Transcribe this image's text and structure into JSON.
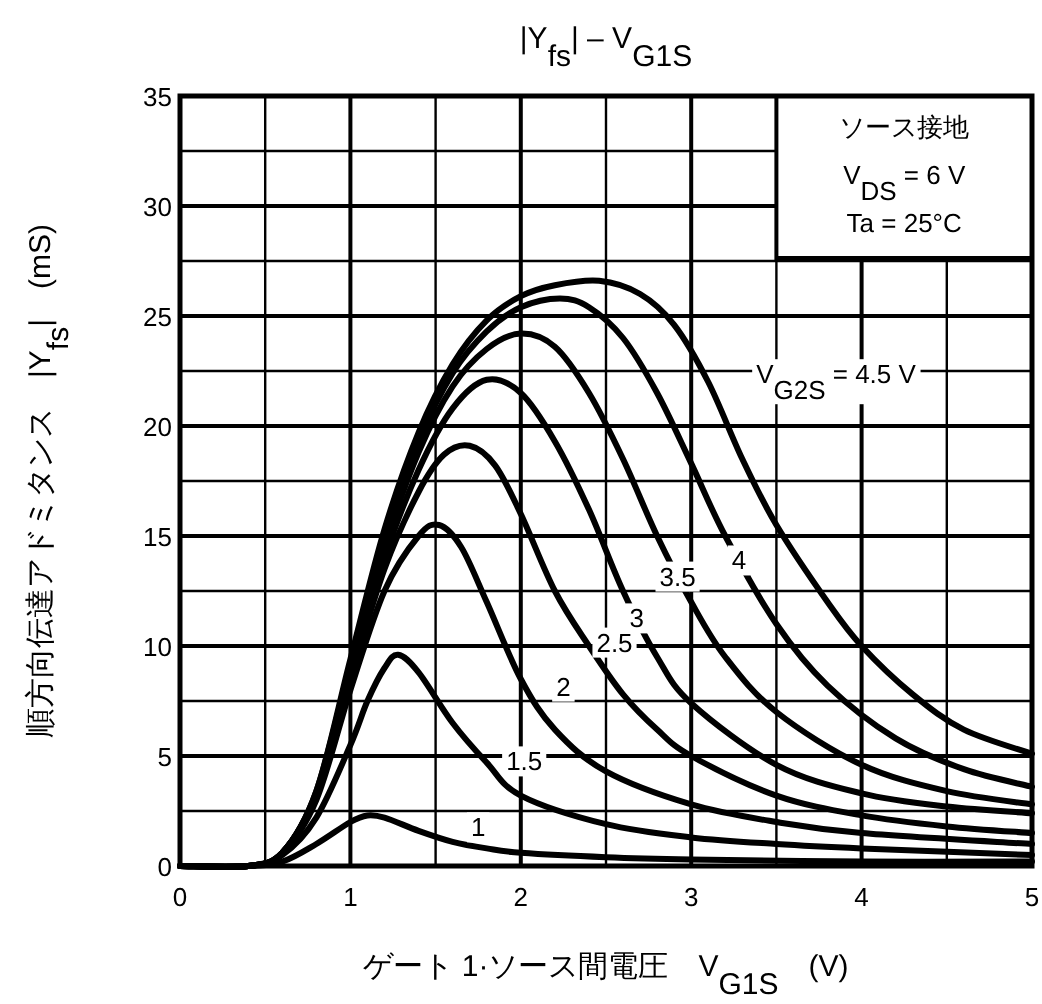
{
  "chart_data": {
    "type": "line",
    "title": "|Y$_{fs}$| – V$_{G1S}$",
    "xlabel": "ゲート 1·ソース間電圧　V$_{G1S}$　(V)",
    "ylabel": "順方向伝達アドミタンス　|Y$_{fs}$|　(mS)",
    "annotations": [
      "ソース接地",
      "V$_{DS}$ = 6 V",
      "Ta = 25°C"
    ],
    "xlim": [
      0,
      5
    ],
    "ylim": [
      0,
      35
    ],
    "xticks": [
      0,
      {
        "value": 0.5,
        "label": null
      },
      1,
      {
        "value": 1.5,
        "label": null
      },
      2,
      {
        "value": 2.5,
        "label": null
      },
      3,
      {
        "value": 3.5,
        "label": null
      },
      4,
      {
        "value": 4.5,
        "label": null
      },
      5
    ],
    "yticks": [
      0,
      {
        "value": 2.5,
        "label": null
      },
      5,
      {
        "value": 7.5,
        "label": null
      },
      10,
      {
        "value": 12.5,
        "label": null
      },
      15,
      {
        "value": 17.5,
        "label": null
      },
      20,
      {
        "value": 22.5,
        "label": null
      },
      25,
      {
        "value": 27.5,
        "label": null
      },
      30,
      {
        "value": 32.5,
        "label": null
      },
      35
    ],
    "grid": true,
    "series": [
      {
        "name": "1",
        "color": "#000000",
        "x": [
          0,
          0.4,
          0.6,
          0.8,
          1.0,
          1.1,
          1.2,
          1.4,
          1.6,
          1.8,
          2.0,
          2.5,
          3.0,
          4.0,
          5.0
        ],
        "values": [
          0,
          0,
          0.2,
          1.0,
          2.0,
          2.3,
          2.2,
          1.6,
          1.1,
          0.8,
          0.6,
          0.4,
          0.3,
          0.2,
          0.2
        ]
      },
      {
        "name": "1.5",
        "color": "#000000",
        "x": [
          0,
          0.4,
          0.6,
          0.8,
          1.0,
          1.1,
          1.2,
          1.28,
          1.4,
          1.6,
          1.8,
          2.0,
          2.5,
          3.0,
          3.5,
          4.0,
          5.0
        ],
        "values": [
          0,
          0,
          0.5,
          2.2,
          5.5,
          7.5,
          9.0,
          9.6,
          8.8,
          6.5,
          4.7,
          3.2,
          1.9,
          1.3,
          1.0,
          0.8,
          0.5
        ]
      },
      {
        "name": "2",
        "color": "#000000",
        "x": [
          0,
          0.4,
          0.6,
          0.8,
          1.0,
          1.2,
          1.4,
          1.52,
          1.65,
          1.8,
          2.0,
          2.2,
          2.5,
          3.0,
          3.5,
          4.0,
          5.0
        ],
        "values": [
          0,
          0,
          0.6,
          3.0,
          8.0,
          12.5,
          15.0,
          15.5,
          14.5,
          12.0,
          8.5,
          6.2,
          4.3,
          2.8,
          2.0,
          1.5,
          1.0
        ]
      },
      {
        "name": "2.5",
        "color": "#000000",
        "x": [
          0,
          0.4,
          0.6,
          0.8,
          1.0,
          1.2,
          1.4,
          1.55,
          1.7,
          1.85,
          2.0,
          2.2,
          2.4,
          2.6,
          2.8,
          3.0,
          3.5,
          4.0,
          4.5,
          5.0
        ],
        "values": [
          0,
          0,
          0.6,
          3.2,
          8.5,
          13.5,
          17.0,
          18.7,
          19.1,
          18.2,
          16.0,
          12.5,
          10.0,
          7.8,
          6.2,
          5.0,
          3.2,
          2.3,
          1.8,
          1.5
        ]
      },
      {
        "name": "3",
        "color": "#000000",
        "x": [
          0,
          0.4,
          0.6,
          0.8,
          1.0,
          1.2,
          1.4,
          1.6,
          1.8,
          2.0,
          2.2,
          2.4,
          2.6,
          2.8,
          3.0,
          3.5,
          4.0,
          4.5,
          5.0
        ],
        "values": [
          0,
          0,
          0.6,
          3.3,
          8.8,
          14.0,
          18.0,
          20.8,
          22.1,
          21.5,
          19.3,
          16.2,
          12.5,
          9.5,
          7.4,
          4.6,
          3.3,
          2.7,
          2.4
        ]
      },
      {
        "name": "3.5",
        "color": "#000000",
        "x": [
          0,
          0.4,
          0.6,
          0.8,
          1.0,
          1.2,
          1.4,
          1.6,
          1.8,
          2.0,
          2.2,
          2.4,
          2.6,
          2.8,
          3.0,
          3.2,
          3.5,
          4.0,
          4.5,
          5.0
        ],
        "values": [
          0,
          0,
          0.6,
          3.3,
          9.0,
          14.5,
          18.8,
          21.8,
          23.5,
          24.2,
          23.6,
          21.5,
          18.5,
          15.0,
          12.0,
          9.5,
          7.0,
          4.6,
          3.4,
          2.8
        ]
      },
      {
        "name": "4",
        "color": "#000000",
        "x": [
          0,
          0.4,
          0.6,
          0.8,
          1.0,
          1.2,
          1.4,
          1.6,
          1.8,
          2.0,
          2.23,
          2.4,
          2.6,
          2.8,
          3.0,
          3.2,
          3.5,
          3.8,
          4.2,
          4.6,
          5.0
        ],
        "values": [
          0,
          0,
          0.6,
          3.4,
          9.2,
          15.0,
          19.3,
          22.4,
          24.3,
          25.4,
          25.8,
          25.4,
          24.0,
          21.5,
          18.3,
          15.0,
          11.0,
          8.2,
          5.8,
          4.4,
          3.6
        ]
      },
      {
        "name": "V$_{G2S}$ = 4.5 V",
        "color": "#000000",
        "x": [
          0,
          0.4,
          0.6,
          0.8,
          1.0,
          1.2,
          1.4,
          1.6,
          1.8,
          2.0,
          2.2,
          2.46,
          2.7,
          2.9,
          3.1,
          3.3,
          3.5,
          3.8,
          4.0,
          4.3,
          4.6,
          5.0
        ],
        "values": [
          0,
          0,
          0.6,
          3.4,
          9.4,
          15.3,
          19.7,
          22.8,
          24.8,
          25.9,
          26.4,
          26.6,
          26.0,
          24.6,
          22.0,
          18.5,
          15.5,
          12.0,
          10.0,
          7.8,
          6.2,
          5.1
        ]
      }
    ]
  }
}
